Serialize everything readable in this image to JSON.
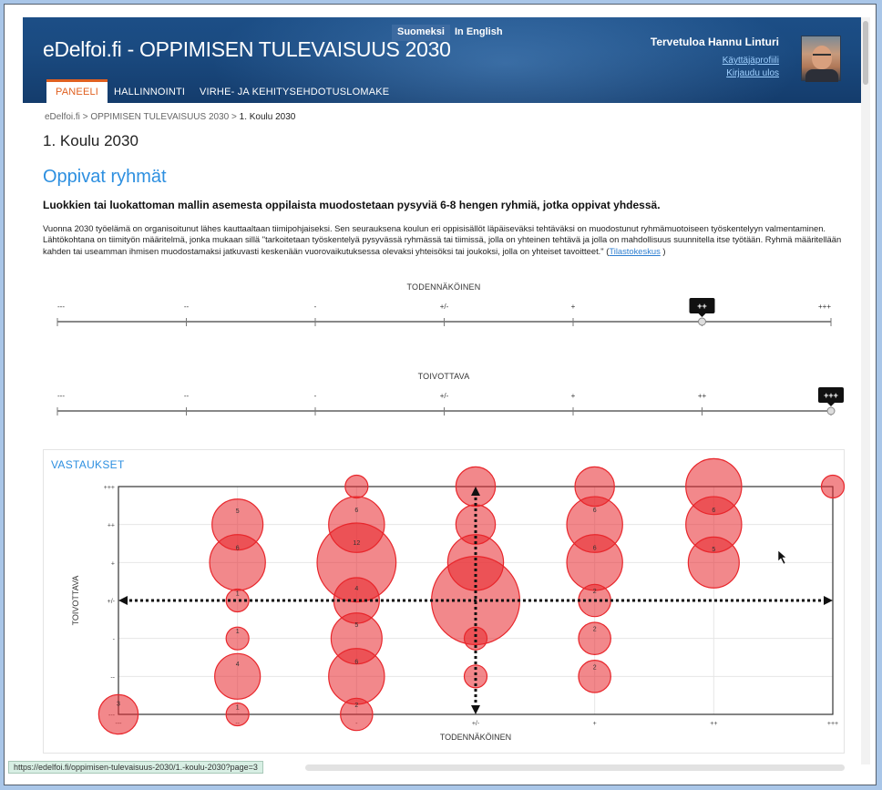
{
  "header": {
    "site_title": "eDelfoi.fi - OPPIMISEN TULEVAISUUS 2030",
    "lang_fi": "Suomeksi",
    "lang_en": "In English",
    "welcome": "Tervetuloa  Hannu Linturi",
    "profile_link": "Käyttäjäprofiili",
    "logout_link": "Kirjaudu ulos",
    "nav": [
      "PANEELI",
      "HALLINNOINTI",
      "VIRHE- JA KEHITYSEHDOTUSLOMAKE"
    ]
  },
  "breadcrumb": {
    "home": "eDelfoi.fi",
    "sep": ">",
    "panel": "OPPIMISEN TULEVAISUUS 2030",
    "current": "1. Koulu 2030"
  },
  "page_title": "1. Koulu 2030",
  "section_title": "Oppivat ryhmät",
  "lead": "Luokkien tai luokattoman mallin asemesta oppilaista muodostetaan pysyviä 6-8 hengen ryhmiä, jotka oppivat yhdessä.",
  "body_text": "Vuonna 2030 työelämä on organisoitunut lähes kauttaaltaan tiimipohjaiseksi. Sen seurauksena koulun eri oppisisällöt läpäiseväksi tehtäväksi on muodostunut ryhmämuotoiseen työskentelyyn valmentaminen. Lähtökohtana on tiimityön määritelmä, jonka mukaan sillä \"tarkoitetaan työskentelyä pysyvässä ryhmässä tai tiimissä, jolla on yhteinen tehtävä ja jolla on mahdollisuus suunnitella itse työtään. Ryhmä määritellään kahden tai useamman ihmisen muodostamaksi jatkuvasti keskenään vuorovaikutuksessa olevaksi yhteisöksi tai joukoksi, jolla on yhteiset tavoitteet.\" (",
  "body_link": "Tilastokeskus",
  "body_end": " )",
  "sliders": [
    {
      "title": "TODENNÄKÖINEN",
      "labels": [
        "---",
        "--",
        "-",
        "+/-",
        "+",
        "++",
        "+++"
      ],
      "value_index": 5,
      "value_label": "++"
    },
    {
      "title": "TOIVOTTAVA",
      "labels": [
        "---",
        "--",
        "-",
        "+/-",
        "+",
        "++",
        "+++"
      ],
      "value_index": 6,
      "value_label": "+++"
    }
  ],
  "answers_title": "VASTAUKSET",
  "chart_data": {
    "type": "scatter",
    "title": "",
    "xlabel": "TODENNÄKÖINEN",
    "ylabel": "TOIVOTTAVA",
    "x_categories": [
      "---",
      "--",
      "-",
      "+/-",
      "+",
      "++",
      "+++"
    ],
    "y_categories": [
      "---",
      "--",
      "-",
      "+/-",
      "+",
      "++",
      "+++"
    ],
    "points": [
      {
        "x": 0,
        "y": 0,
        "count": 3,
        "label": "3"
      },
      {
        "x": 1,
        "y": 5,
        "count": 5,
        "label": "5"
      },
      {
        "x": 1,
        "y": 4,
        "count": 6,
        "label": "6"
      },
      {
        "x": 1,
        "y": 3,
        "count": 1,
        "label": "1"
      },
      {
        "x": 1,
        "y": 2,
        "count": 1,
        "label": "1"
      },
      {
        "x": 1,
        "y": 1,
        "count": 4,
        "label": "4"
      },
      {
        "x": 1,
        "y": 0,
        "count": 1,
        "label": "1"
      },
      {
        "x": 2,
        "y": 6,
        "count": 1,
        "label": ""
      },
      {
        "x": 2,
        "y": 5,
        "count": 6,
        "label": "6"
      },
      {
        "x": 2,
        "y": 4,
        "count": 12,
        "label": "12"
      },
      {
        "x": 2,
        "y": 3,
        "count": 4,
        "label": "4"
      },
      {
        "x": 2,
        "y": 2,
        "count": 5,
        "label": "5"
      },
      {
        "x": 2,
        "y": 1,
        "count": 6,
        "label": "6"
      },
      {
        "x": 2,
        "y": 0,
        "count": 2,
        "label": "2"
      },
      {
        "x": 3,
        "y": 6,
        "count": 3,
        "label": ""
      },
      {
        "x": 3,
        "y": 5,
        "count": 3,
        "label": ""
      },
      {
        "x": 3,
        "y": 4,
        "count": 6,
        "label": ""
      },
      {
        "x": 3,
        "y": 3,
        "count": 15,
        "label": ""
      },
      {
        "x": 3,
        "y": 2,
        "count": 1,
        "label": ""
      },
      {
        "x": 3,
        "y": 1,
        "count": 1,
        "label": ""
      },
      {
        "x": 4,
        "y": 6,
        "count": 3,
        "label": ""
      },
      {
        "x": 4,
        "y": 5,
        "count": 6,
        "label": "6"
      },
      {
        "x": 4,
        "y": 4,
        "count": 6,
        "label": "6"
      },
      {
        "x": 4,
        "y": 3,
        "count": 2,
        "label": "2"
      },
      {
        "x": 4,
        "y": 2,
        "count": 2,
        "label": "2"
      },
      {
        "x": 4,
        "y": 1,
        "count": 2,
        "label": "2"
      },
      {
        "x": 5,
        "y": 6,
        "count": 6,
        "label": ""
      },
      {
        "x": 5,
        "y": 5,
        "count": 6,
        "label": "6"
      },
      {
        "x": 5,
        "y": 4,
        "count": 5,
        "label": "5"
      },
      {
        "x": 6,
        "y": 6,
        "count": 1,
        "label": ""
      }
    ],
    "grid": true,
    "bubble_color": "#e8262b"
  },
  "status_url": "https://edelfoi.fi/oppimisen-tulevaisuus-2030/1.-koulu-2030?page=3"
}
